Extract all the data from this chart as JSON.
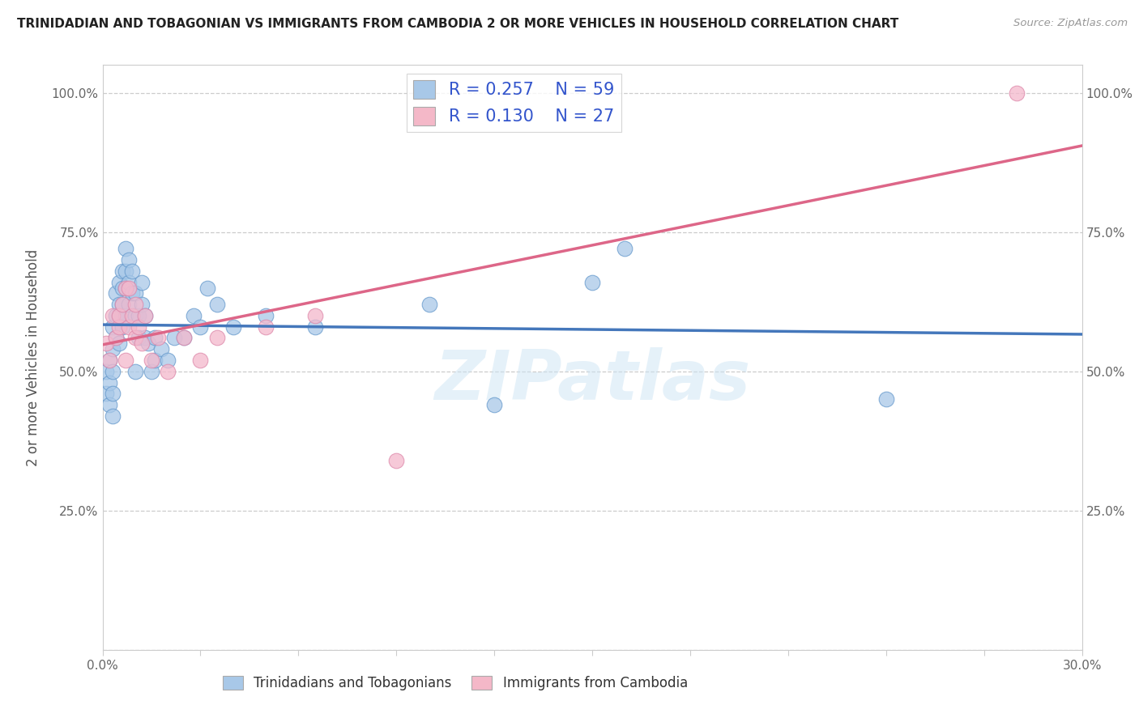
{
  "title": "TRINIDADIAN AND TOBAGONIAN VS IMMIGRANTS FROM CAMBODIA 2 OR MORE VEHICLES IN HOUSEHOLD CORRELATION CHART",
  "source": "Source: ZipAtlas.com",
  "xlabel_bottom_labels": [
    "Trinidadians and Tobagonians",
    "Immigrants from Cambodia"
  ],
  "ylabel": "2 or more Vehicles in Household",
  "xmin": 0.0,
  "xmax": 0.3,
  "ymin": 0.0,
  "ymax": 1.05,
  "blue_R": 0.257,
  "blue_N": 59,
  "pink_R": 0.13,
  "pink_N": 27,
  "blue_scatter_color": "#a8c8e8",
  "pink_scatter_color": "#f4b8cc",
  "blue_edge_color": "#6699cc",
  "pink_edge_color": "#dd88aa",
  "blue_line_color": "#4477bb",
  "pink_line_color": "#dd6688",
  "legend_blue_fill": "#a8c8e8",
  "legend_pink_fill": "#f4b8c8",
  "blue_scatter_x": [
    0.001,
    0.001,
    0.002,
    0.002,
    0.002,
    0.003,
    0.003,
    0.003,
    0.003,
    0.003,
    0.004,
    0.004,
    0.004,
    0.005,
    0.005,
    0.005,
    0.005,
    0.006,
    0.006,
    0.006,
    0.006,
    0.007,
    0.007,
    0.007,
    0.007,
    0.008,
    0.008,
    0.008,
    0.009,
    0.009,
    0.01,
    0.01,
    0.01,
    0.011,
    0.011,
    0.012,
    0.012,
    0.013,
    0.013,
    0.014,
    0.015,
    0.016,
    0.016,
    0.018,
    0.02,
    0.022,
    0.025,
    0.028,
    0.03,
    0.032,
    0.035,
    0.04,
    0.05,
    0.065,
    0.1,
    0.12,
    0.15,
    0.16,
    0.24
  ],
  "blue_scatter_y": [
    0.46,
    0.5,
    0.44,
    0.48,
    0.52,
    0.42,
    0.46,
    0.5,
    0.54,
    0.58,
    0.56,
    0.6,
    0.64,
    0.55,
    0.6,
    0.62,
    0.66,
    0.58,
    0.62,
    0.65,
    0.68,
    0.6,
    0.65,
    0.68,
    0.72,
    0.62,
    0.66,
    0.7,
    0.64,
    0.68,
    0.5,
    0.6,
    0.64,
    0.56,
    0.6,
    0.62,
    0.66,
    0.6,
    0.56,
    0.55,
    0.5,
    0.52,
    0.56,
    0.54,
    0.52,
    0.56,
    0.56,
    0.6,
    0.58,
    0.65,
    0.62,
    0.58,
    0.6,
    0.58,
    0.62,
    0.44,
    0.66,
    0.72,
    0.45
  ],
  "pink_scatter_x": [
    0.001,
    0.002,
    0.003,
    0.004,
    0.005,
    0.005,
    0.006,
    0.007,
    0.007,
    0.008,
    0.008,
    0.009,
    0.01,
    0.01,
    0.011,
    0.012,
    0.013,
    0.015,
    0.017,
    0.02,
    0.025,
    0.03,
    0.035,
    0.05,
    0.065,
    0.09,
    0.28
  ],
  "pink_scatter_y": [
    0.55,
    0.52,
    0.6,
    0.56,
    0.58,
    0.6,
    0.62,
    0.65,
    0.52,
    0.65,
    0.58,
    0.6,
    0.56,
    0.62,
    0.58,
    0.55,
    0.6,
    0.52,
    0.56,
    0.5,
    0.56,
    0.52,
    0.56,
    0.58,
    0.6,
    0.34,
    1.0
  ],
  "watermark": "ZIPatlas",
  "background_color": "#ffffff",
  "grid_color": "#cccccc"
}
